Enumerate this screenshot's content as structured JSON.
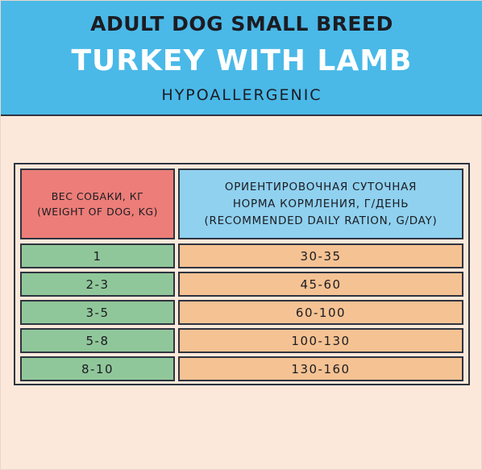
{
  "header": {
    "line1": "ADULT DOG SMALL BREED",
    "line2": "TURKEY WITH LAMB",
    "line3": "HYPOALLERGENIC"
  },
  "table": {
    "col1_header": [
      "ВЕС СОБАКИ, КГ",
      "(WEIGHT OF DOG, KG)"
    ],
    "col2_header": [
      "ОРИЕНТИРОВОЧНАЯ СУТОЧНАЯ",
      "НОРМА КОРМЛЕНИЯ, Г/ДЕНЬ",
      "(RECOMMENDED DAILY RATION, G/DAY)"
    ],
    "rows": [
      {
        "weight": "1",
        "ration": "30-35"
      },
      {
        "weight": "2-3",
        "ration": "45-60"
      },
      {
        "weight": "3-5",
        "ration": "60-100"
      },
      {
        "weight": "5-8",
        "ration": "100-130"
      },
      {
        "weight": "8-10",
        "ration": "130-160"
      }
    ]
  },
  "colors": {
    "header_bg": "#4ab9e8",
    "page_bg": "#fbe8da",
    "col1_header_bg": "#ec7d78",
    "col2_header_bg": "#8fd1ef",
    "col1_row_bg": "#90c79a",
    "col2_row_bg": "#f5c293"
  }
}
